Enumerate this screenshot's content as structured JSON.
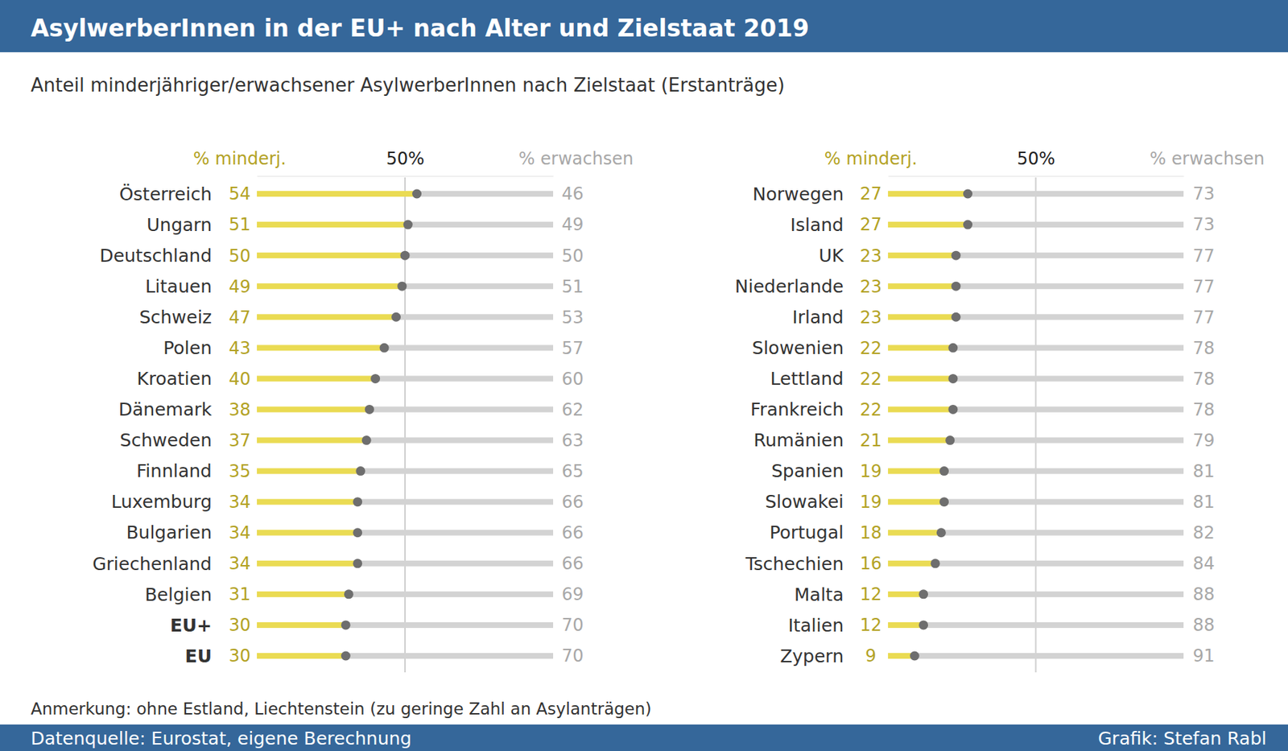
{
  "chart_data": [
    {
      "type": "bar",
      "orientation": "horizontal",
      "stacked": true,
      "data_labels": true,
      "title": "AsylwerberInnen in der EU+ nach Alter und Zielstaat 2019",
      "subtitle": "Anteil minderjähriger/erwachsener AsylwerberInnen nach Zielstaat (Erstanträge)",
      "categories": [
        "Österreich",
        "Ungarn",
        "Deutschland",
        "Litauen",
        "Schweiz",
        "Polen",
        "Kroatien",
        "Dänemark",
        "Schweden",
        "Finnland",
        "Luxemburg",
        "Bulgarien",
        "Griechenland",
        "Belgien",
        "EU+",
        "EU"
      ],
      "series": [
        {
          "name": "% minderj.",
          "color": "#eadb53",
          "values": [
            54,
            51,
            50,
            49,
            47,
            43,
            40,
            38,
            37,
            35,
            34,
            34,
            34,
            31,
            30,
            30
          ]
        },
        {
          "name": "% erwachsen",
          "color": "#d3d3d3",
          "values": [
            46,
            49,
            50,
            51,
            53,
            57,
            60,
            62,
            63,
            65,
            66,
            66,
            66,
            69,
            70,
            70
          ]
        }
      ],
      "xlim": [
        0,
        100
      ],
      "xticks": [
        {
          "value": 50,
          "label": "50%"
        }
      ],
      "grid": true
    },
    {
      "type": "bar",
      "orientation": "horizontal",
      "stacked": true,
      "data_labels": true,
      "categories": [
        "Norwegen",
        "Island",
        "UK",
        "Niederlande",
        "Irland",
        "Slowenien",
        "Lettland",
        "Frankreich",
        "Rumänien",
        "Spanien",
        "Slowakei",
        "Portugal",
        "Tschechien",
        "Malta",
        "Italien",
        "Zypern"
      ],
      "series": [
        {
          "name": "% minderj.",
          "color": "#eadb53",
          "values": [
            27,
            27,
            23,
            23,
            23,
            22,
            22,
            22,
            21,
            19,
            19,
            18,
            16,
            12,
            12,
            9
          ]
        },
        {
          "name": "% erwachsen",
          "color": "#d3d3d3",
          "values": [
            73,
            73,
            77,
            77,
            77,
            78,
            78,
            78,
            79,
            81,
            81,
            82,
            84,
            88,
            88,
            91
          ]
        }
      ],
      "xlim": [
        0,
        100
      ],
      "xticks": [
        {
          "value": 50,
          "label": "50%"
        }
      ],
      "grid": true
    }
  ],
  "footer": {
    "note": "Anmerkung: ohne Estland, Liechtenstein (zu geringe Zahl an Asylanträgen)",
    "source": "Datenquelle: Eurostat, eigene Berechnung",
    "credit": "Grafik: Stefan Rabl"
  }
}
